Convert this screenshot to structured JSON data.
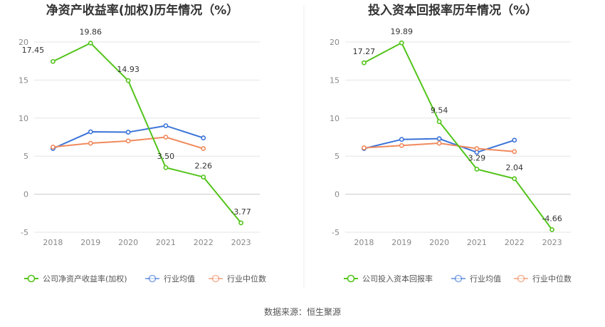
{
  "source_label": "数据来源：恒生聚源",
  "chart_data": [
    {
      "type": "line",
      "title": "净资产收益率(加权)历年情况（%）",
      "categories": [
        "2018",
        "2019",
        "2020",
        "2021",
        "2022",
        "2023"
      ],
      "ylim": [
        -5,
        20
      ],
      "yticks": [
        -5,
        0,
        5,
        10,
        15,
        20
      ],
      "grid": true,
      "legend_position": "bottom",
      "series": [
        {
          "name": "公司净资产收益率(加权)",
          "color": "#52c41a",
          "values": [
            17.45,
            19.86,
            14.93,
            3.5,
            2.26,
            -3.77
          ],
          "labels": [
            "17.45",
            "19.86",
            "14.93",
            "3.50",
            "2.26",
            "-3.77"
          ]
        },
        {
          "name": "行业均值",
          "color": "#3a73d8",
          "values": [
            6.0,
            8.2,
            8.15,
            9.0,
            7.4,
            null
          ]
        },
        {
          "name": "行业中位数",
          "color": "#f08a5d",
          "values": [
            6.2,
            6.7,
            7.0,
            7.5,
            6.0,
            null
          ]
        }
      ]
    },
    {
      "type": "line",
      "title": "投入资本回报率历年情况（%）",
      "categories": [
        "2018",
        "2019",
        "2020",
        "2021",
        "2022",
        "2023"
      ],
      "ylim": [
        -5,
        20
      ],
      "yticks": [
        -5,
        0,
        5,
        10,
        15,
        20
      ],
      "grid": true,
      "legend_position": "bottom",
      "series": [
        {
          "name": "公司投入资本回报率",
          "color": "#52c41a",
          "values": [
            17.27,
            19.89,
            9.54,
            3.29,
            2.04,
            -4.66
          ],
          "labels": [
            "17.27",
            "19.89",
            "9.54",
            "3.29",
            "2.04",
            "-4.66"
          ]
        },
        {
          "name": "行业均值",
          "color": "#3a73d8",
          "values": [
            6.0,
            7.2,
            7.3,
            5.5,
            7.1,
            null
          ]
        },
        {
          "name": "行业中位数",
          "color": "#f08a5d",
          "values": [
            6.1,
            6.4,
            6.7,
            6.0,
            5.6,
            null
          ]
        }
      ]
    }
  ]
}
